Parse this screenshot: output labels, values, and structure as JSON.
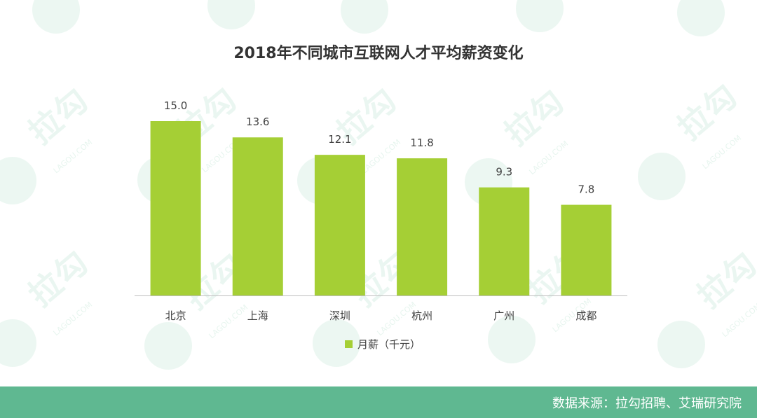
{
  "chart_data": {
    "type": "bar",
    "title": "2018年不同城市互联网人才平均薪资变化",
    "categories": [
      "北京",
      "上海",
      "深圳",
      "杭州",
      "广州",
      "成都"
    ],
    "series": [
      {
        "name": "月薪（千元）",
        "values": [
          15.0,
          13.6,
          12.1,
          11.8,
          9.3,
          7.8
        ]
      }
    ],
    "value_labels": [
      "15.0",
      "13.6",
      "12.1",
      "11.8",
      "9.3",
      "7.8"
    ],
    "ylim": [
      0,
      15.0
    ],
    "xlabel": "",
    "ylabel": "",
    "legend_position": "bottom-center",
    "grid": false
  },
  "watermark": {
    "logo_text": "拉勾",
    "domain_text": "LAGOU.COM"
  },
  "footer": {
    "source_text": "数据来源：拉勾招聘、艾瑞研究院"
  },
  "colors": {
    "bar": "#A5CF35",
    "axis": "#BFBFBF",
    "footer_bg": "#5FB891",
    "watermark": "#DDF1E8"
  }
}
